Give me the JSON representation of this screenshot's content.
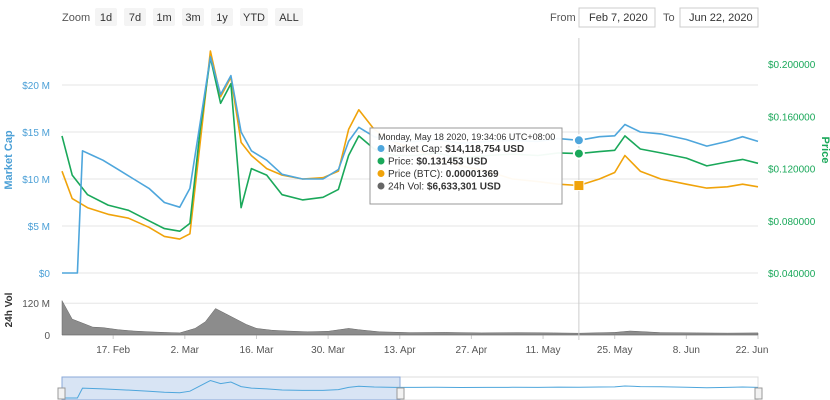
{
  "toolbar": {
    "zoom_label": "Zoom",
    "zoom_buttons": [
      "1d",
      "7d",
      "1m",
      "3m",
      "1y",
      "YTD",
      "ALL"
    ],
    "from_label": "From",
    "from_value": "Feb 7, 2020",
    "to_label": "To",
    "to_value": "Jun 22, 2020"
  },
  "axes": {
    "left_title": "Market Cap",
    "right_title": "Price",
    "volume_title": "24h Vol",
    "left_ticks": [
      "$0",
      "$5 M",
      "$10 M",
      "$15 M",
      "$20 M"
    ],
    "right_ticks": [
      "$0.040000",
      "$0.080000",
      "$0.120000",
      "$0.160000",
      "$0.200000"
    ],
    "volume_ticks": [
      "0",
      "120 M"
    ],
    "x_ticks": [
      "17. Feb",
      "2. Mar",
      "16. Mar",
      "30. Mar",
      "13. Apr",
      "27. Apr",
      "11. May",
      "25. May",
      "8. Jun",
      "22. Jun"
    ]
  },
  "tooltip": {
    "title": "Monday, May 18 2020, 19:34:06 UTC+08:00",
    "rows": [
      {
        "label": "Market Cap:",
        "value": "$14,118,754 USD",
        "color": "#4ea6dc"
      },
      {
        "label": "Price:",
        "value": "$0.131453 USD",
        "color": "#1aa85a"
      },
      {
        "label": "Price (BTC):",
        "value": "0.00001369",
        "color": "#f0a30a"
      },
      {
        "label": "24h Vol:",
        "value": "$6,633,301 USD",
        "color": "#666666"
      }
    ]
  },
  "colors": {
    "market_cap": "#4ea6dc",
    "price": "#1aa85a",
    "price_btc": "#f0a30a",
    "volume": "#666666",
    "navigator_fill": "#c8d8f0"
  },
  "chart_data": {
    "type": "line",
    "x_start": "2020-02-07",
    "x_end": "2020-06-22",
    "hover_date": "2020-05-18",
    "left_axis": {
      "title": "Market Cap",
      "unit": "USD",
      "ylim": [
        0,
        25000000
      ]
    },
    "right_axis": {
      "title": "Price",
      "unit": "USD",
      "ylim": [
        0.04,
        0.22
      ]
    },
    "series": [
      {
        "name": "Market Cap",
        "axis": "left",
        "points": [
          [
            "2020-02-07",
            0
          ],
          [
            "2020-02-10",
            0
          ],
          [
            "2020-02-11",
            13000000
          ],
          [
            "2020-02-13",
            12500000
          ],
          [
            "2020-02-15",
            12000000
          ],
          [
            "2020-02-18",
            11000000
          ],
          [
            "2020-02-21",
            10000000
          ],
          [
            "2020-02-24",
            9000000
          ],
          [
            "2020-02-27",
            7500000
          ],
          [
            "2020-03-01",
            7000000
          ],
          [
            "2020-03-03",
            9000000
          ],
          [
            "2020-03-05",
            16000000
          ],
          [
            "2020-03-07",
            23000000
          ],
          [
            "2020-03-09",
            19000000
          ],
          [
            "2020-03-11",
            21000000
          ],
          [
            "2020-03-13",
            15000000
          ],
          [
            "2020-03-15",
            13000000
          ],
          [
            "2020-03-18",
            12000000
          ],
          [
            "2020-03-21",
            10500000
          ],
          [
            "2020-03-25",
            10000000
          ],
          [
            "2020-03-29",
            10000000
          ],
          [
            "2020-04-01",
            11000000
          ],
          [
            "2020-04-03",
            14000000
          ],
          [
            "2020-04-05",
            15500000
          ],
          [
            "2020-04-08",
            14500000
          ],
          [
            "2020-04-12",
            14000000
          ],
          [
            "2020-04-16",
            14000000
          ],
          [
            "2020-04-20",
            14200000
          ],
          [
            "2020-04-25",
            13800000
          ],
          [
            "2020-04-30",
            14000000
          ],
          [
            "2020-05-05",
            14100000
          ],
          [
            "2020-05-10",
            14000000
          ],
          [
            "2020-05-14",
            14300000
          ],
          [
            "2020-05-18",
            14118754
          ],
          [
            "2020-05-22",
            14500000
          ],
          [
            "2020-05-25",
            14600000
          ],
          [
            "2020-05-27",
            15800000
          ],
          [
            "2020-05-30",
            15000000
          ],
          [
            "2020-06-03",
            14800000
          ],
          [
            "2020-06-08",
            14200000
          ],
          [
            "2020-06-12",
            13500000
          ],
          [
            "2020-06-16",
            14000000
          ],
          [
            "2020-06-19",
            14500000
          ],
          [
            "2020-06-22",
            14000000
          ]
        ]
      },
      {
        "name": "Price",
        "axis": "right",
        "points": [
          [
            "2020-02-07",
            0.145
          ],
          [
            "2020-02-09",
            0.115
          ],
          [
            "2020-02-12",
            0.1
          ],
          [
            "2020-02-16",
            0.092
          ],
          [
            "2020-02-20",
            0.088
          ],
          [
            "2020-02-24",
            0.08
          ],
          [
            "2020-02-27",
            0.074
          ],
          [
            "2020-03-01",
            0.072
          ],
          [
            "2020-03-03",
            0.078
          ],
          [
            "2020-03-05",
            0.15
          ],
          [
            "2020-03-07",
            0.205
          ],
          [
            "2020-03-09",
            0.17
          ],
          [
            "2020-03-11",
            0.185
          ],
          [
            "2020-03-13",
            0.09
          ],
          [
            "2020-03-15",
            0.12
          ],
          [
            "2020-03-18",
            0.115
          ],
          [
            "2020-03-21",
            0.1
          ],
          [
            "2020-03-25",
            0.096
          ],
          [
            "2020-03-29",
            0.098
          ],
          [
            "2020-04-01",
            0.104
          ],
          [
            "2020-04-03",
            0.13
          ],
          [
            "2020-04-05",
            0.145
          ],
          [
            "2020-04-08",
            0.135
          ],
          [
            "2020-04-12",
            0.13
          ],
          [
            "2020-04-16",
            0.13
          ],
          [
            "2020-04-20",
            0.132
          ],
          [
            "2020-04-25",
            0.128
          ],
          [
            "2020-04-30",
            0.13
          ],
          [
            "2020-05-05",
            0.131
          ],
          [
            "2020-05-10",
            0.13
          ],
          [
            "2020-05-14",
            0.132
          ],
          [
            "2020-05-18",
            0.131453
          ],
          [
            "2020-05-22",
            0.133
          ],
          [
            "2020-05-25",
            0.134
          ],
          [
            "2020-05-27",
            0.145
          ],
          [
            "2020-05-30",
            0.135
          ],
          [
            "2020-06-03",
            0.132
          ],
          [
            "2020-06-08",
            0.128
          ],
          [
            "2020-06-12",
            0.122
          ],
          [
            "2020-06-16",
            0.125
          ],
          [
            "2020-06-19",
            0.127
          ],
          [
            "2020-06-22",
            0.124
          ]
        ]
      },
      {
        "name": "Price (BTC)",
        "axis": "right",
        "points": [
          [
            "2020-02-07",
            0.118
          ],
          [
            "2020-02-09",
            0.097
          ],
          [
            "2020-02-12",
            0.09
          ],
          [
            "2020-02-16",
            0.085
          ],
          [
            "2020-02-20",
            0.082
          ],
          [
            "2020-02-24",
            0.075
          ],
          [
            "2020-02-27",
            0.068
          ],
          [
            "2020-03-01",
            0.066
          ],
          [
            "2020-03-03",
            0.07
          ],
          [
            "2020-03-05",
            0.14
          ],
          [
            "2020-03-07",
            0.21
          ],
          [
            "2020-03-09",
            0.175
          ],
          [
            "2020-03-11",
            0.19
          ],
          [
            "2020-03-13",
            0.14
          ],
          [
            "2020-03-15",
            0.13
          ],
          [
            "2020-03-18",
            0.12
          ],
          [
            "2020-03-21",
            0.115
          ],
          [
            "2020-03-25",
            0.112
          ],
          [
            "2020-03-29",
            0.113
          ],
          [
            "2020-04-01",
            0.118
          ],
          [
            "2020-04-03",
            0.15
          ],
          [
            "2020-04-05",
            0.165
          ],
          [
            "2020-04-08",
            0.15
          ],
          [
            "2020-04-12",
            0.14
          ],
          [
            "2020-04-16",
            0.135
          ],
          [
            "2020-04-20",
            0.128
          ],
          [
            "2020-04-25",
            0.122
          ],
          [
            "2020-04-30",
            0.118
          ],
          [
            "2020-05-05",
            0.112
          ],
          [
            "2020-05-10",
            0.11
          ],
          [
            "2020-05-14",
            0.108
          ],
          [
            "2020-05-18",
            0.107
          ],
          [
            "2020-05-22",
            0.112
          ],
          [
            "2020-05-25",
            0.117
          ],
          [
            "2020-05-27",
            0.13
          ],
          [
            "2020-05-30",
            0.118
          ],
          [
            "2020-06-03",
            0.112
          ],
          [
            "2020-06-08",
            0.108
          ],
          [
            "2020-06-12",
            0.105
          ],
          [
            "2020-06-16",
            0.106
          ],
          [
            "2020-06-19",
            0.108
          ],
          [
            "2020-06-22",
            0.106
          ]
        ]
      },
      {
        "name": "24h Vol",
        "axis": "volume",
        "ylim": [
          0,
          170000000
        ],
        "points": [
          [
            "2020-02-07",
            130000000
          ],
          [
            "2020-02-09",
            60000000
          ],
          [
            "2020-02-11",
            45000000
          ],
          [
            "2020-02-13",
            30000000
          ],
          [
            "2020-02-15",
            28000000
          ],
          [
            "2020-02-18",
            20000000
          ],
          [
            "2020-02-21",
            15000000
          ],
          [
            "2020-02-24",
            12000000
          ],
          [
            "2020-02-27",
            10000000
          ],
          [
            "2020-03-01",
            8000000
          ],
          [
            "2020-03-04",
            25000000
          ],
          [
            "2020-03-06",
            50000000
          ],
          [
            "2020-03-08",
            100000000
          ],
          [
            "2020-03-10",
            80000000
          ],
          [
            "2020-03-12",
            60000000
          ],
          [
            "2020-03-14",
            40000000
          ],
          [
            "2020-03-16",
            25000000
          ],
          [
            "2020-03-19",
            18000000
          ],
          [
            "2020-03-22",
            15000000
          ],
          [
            "2020-03-26",
            12000000
          ],
          [
            "2020-03-30",
            14000000
          ],
          [
            "2020-04-03",
            25000000
          ],
          [
            "2020-04-05",
            20000000
          ],
          [
            "2020-04-09",
            12000000
          ],
          [
            "2020-04-15",
            9000000
          ],
          [
            "2020-04-22",
            10000000
          ],
          [
            "2020-04-29",
            8000000
          ],
          [
            "2020-05-06",
            9000000
          ],
          [
            "2020-05-13",
            8000000
          ],
          [
            "2020-05-18",
            6633301
          ],
          [
            "2020-05-25",
            10000000
          ],
          [
            "2020-05-28",
            15000000
          ],
          [
            "2020-06-03",
            9000000
          ],
          [
            "2020-06-10",
            8000000
          ],
          [
            "2020-06-16",
            7000000
          ],
          [
            "2020-06-22",
            8000000
          ]
        ]
      }
    ]
  }
}
